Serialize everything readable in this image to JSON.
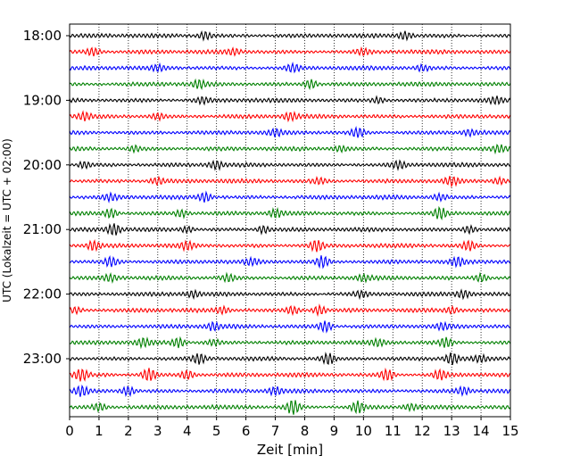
{
  "chart_data": {
    "type": "line",
    "title": "",
    "xlabel": "Zeit  [min]",
    "ylabel": "UTC (Lokalzeit = UTC + 02:00)",
    "xlim": [
      0,
      15
    ],
    "x_ticks": [
      "0",
      "1",
      "2",
      "3",
      "4",
      "5",
      "6",
      "7",
      "8",
      "9",
      "10",
      "11",
      "12",
      "13",
      "14",
      "15"
    ],
    "y_ticks": [
      "18:00",
      "19:00",
      "20:00",
      "21:00",
      "22:00",
      "23:00"
    ],
    "grid": "vertical dotted lines at each minute",
    "trace_interval_min": 15,
    "trace_colors": [
      "#000000",
      "#ff0000",
      "#0000ff",
      "#008000"
    ],
    "series": [
      {
        "start": "18:00",
        "bursts": [
          [
            4.6,
            0.4
          ],
          [
            11.4,
            0.4
          ]
        ]
      },
      {
        "start": "18:15",
        "bursts": [
          [
            0.8,
            0.4
          ],
          [
            5.6,
            0.3
          ],
          [
            10.0,
            0.3
          ]
        ]
      },
      {
        "start": "18:30",
        "bursts": [
          [
            3.0,
            0.3
          ],
          [
            7.6,
            0.4
          ],
          [
            12.0,
            0.3
          ]
        ]
      },
      {
        "start": "18:45",
        "bursts": [
          [
            4.4,
            0.4
          ],
          [
            8.2,
            0.5
          ]
        ]
      },
      {
        "start": "19:00",
        "bursts": [
          [
            4.5,
            0.3
          ],
          [
            10.5,
            0.3
          ],
          [
            14.5,
            0.3
          ]
        ]
      },
      {
        "start": "19:15",
        "bursts": [
          [
            0.5,
            0.4
          ],
          [
            3.0,
            0.3
          ],
          [
            7.5,
            0.4
          ]
        ]
      },
      {
        "start": "19:30",
        "bursts": [
          [
            7.0,
            0.3
          ],
          [
            9.8,
            0.5
          ],
          [
            13.6,
            0.3
          ]
        ]
      },
      {
        "start": "19:45",
        "bursts": [
          [
            2.2,
            0.3
          ],
          [
            9.2,
            0.3
          ],
          [
            14.6,
            0.3
          ]
        ]
      },
      {
        "start": "20:00",
        "bursts": [
          [
            0.5,
            0.3
          ],
          [
            5.0,
            0.4
          ],
          [
            11.2,
            0.4
          ]
        ]
      },
      {
        "start": "20:15",
        "bursts": [
          [
            3.0,
            0.3
          ],
          [
            8.5,
            0.3
          ],
          [
            13.0,
            0.4
          ],
          [
            14.6,
            0.3
          ]
        ]
      },
      {
        "start": "20:30",
        "bursts": [
          [
            1.4,
            0.3
          ],
          [
            4.6,
            0.5
          ],
          [
            12.6,
            0.3
          ]
        ]
      },
      {
        "start": "20:45",
        "bursts": [
          [
            1.4,
            0.5
          ],
          [
            3.8,
            0.4
          ],
          [
            7.0,
            0.4
          ],
          [
            12.6,
            0.6
          ]
        ]
      },
      {
        "start": "21:00",
        "bursts": [
          [
            1.5,
            0.6
          ],
          [
            4.0,
            0.3
          ],
          [
            6.6,
            0.4
          ],
          [
            13.6,
            0.4
          ]
        ]
      },
      {
        "start": "21:15",
        "bursts": [
          [
            0.8,
            0.5
          ],
          [
            4.0,
            0.4
          ],
          [
            8.4,
            0.6
          ],
          [
            13.6,
            0.5
          ]
        ]
      },
      {
        "start": "21:30",
        "bursts": [
          [
            1.4,
            0.5
          ],
          [
            6.2,
            0.3
          ],
          [
            8.6,
            0.6
          ],
          [
            13.2,
            0.4
          ]
        ]
      },
      {
        "start": "21:45",
        "bursts": [
          [
            1.4,
            0.3
          ],
          [
            5.4,
            0.4
          ],
          [
            10.0,
            0.3
          ],
          [
            14.0,
            0.4
          ]
        ]
      },
      {
        "start": "22:00",
        "bursts": [
          [
            4.2,
            0.3
          ],
          [
            9.9,
            0.3
          ],
          [
            13.4,
            0.4
          ]
        ]
      },
      {
        "start": "22:15",
        "bursts": [
          [
            0.2,
            0.3
          ],
          [
            5.2,
            0.3
          ],
          [
            7.6,
            0.4
          ],
          [
            8.5,
            0.5
          ],
          [
            13.0,
            0.3
          ]
        ]
      },
      {
        "start": "22:30",
        "bursts": [
          [
            4.9,
            0.4
          ],
          [
            8.7,
            0.6
          ],
          [
            12.7,
            0.3
          ]
        ]
      },
      {
        "start": "22:45",
        "bursts": [
          [
            2.5,
            0.4
          ],
          [
            3.7,
            0.5
          ],
          [
            4.9,
            0.3
          ],
          [
            10.5,
            0.3
          ],
          [
            12.8,
            0.5
          ]
        ]
      },
      {
        "start": "23:00",
        "bursts": [
          [
            4.4,
            0.5
          ],
          [
            8.8,
            0.6
          ],
          [
            13.0,
            0.6
          ],
          [
            14.0,
            0.3
          ]
        ]
      },
      {
        "start": "23:15",
        "bursts": [
          [
            0.4,
            0.6
          ],
          [
            2.7,
            0.7
          ],
          [
            4.0,
            0.5
          ],
          [
            10.8,
            0.6
          ],
          [
            12.6,
            0.5
          ]
        ]
      },
      {
        "start": "23:30",
        "bursts": [
          [
            0.4,
            0.5
          ],
          [
            2.0,
            0.5
          ],
          [
            7.0,
            0.4
          ],
          [
            13.4,
            0.4
          ]
        ]
      },
      {
        "start": "23:45",
        "bursts": [
          [
            1.0,
            0.4
          ],
          [
            7.6,
            0.8
          ],
          [
            9.8,
            0.6
          ],
          [
            11.6,
            0.3
          ]
        ]
      }
    ]
  }
}
